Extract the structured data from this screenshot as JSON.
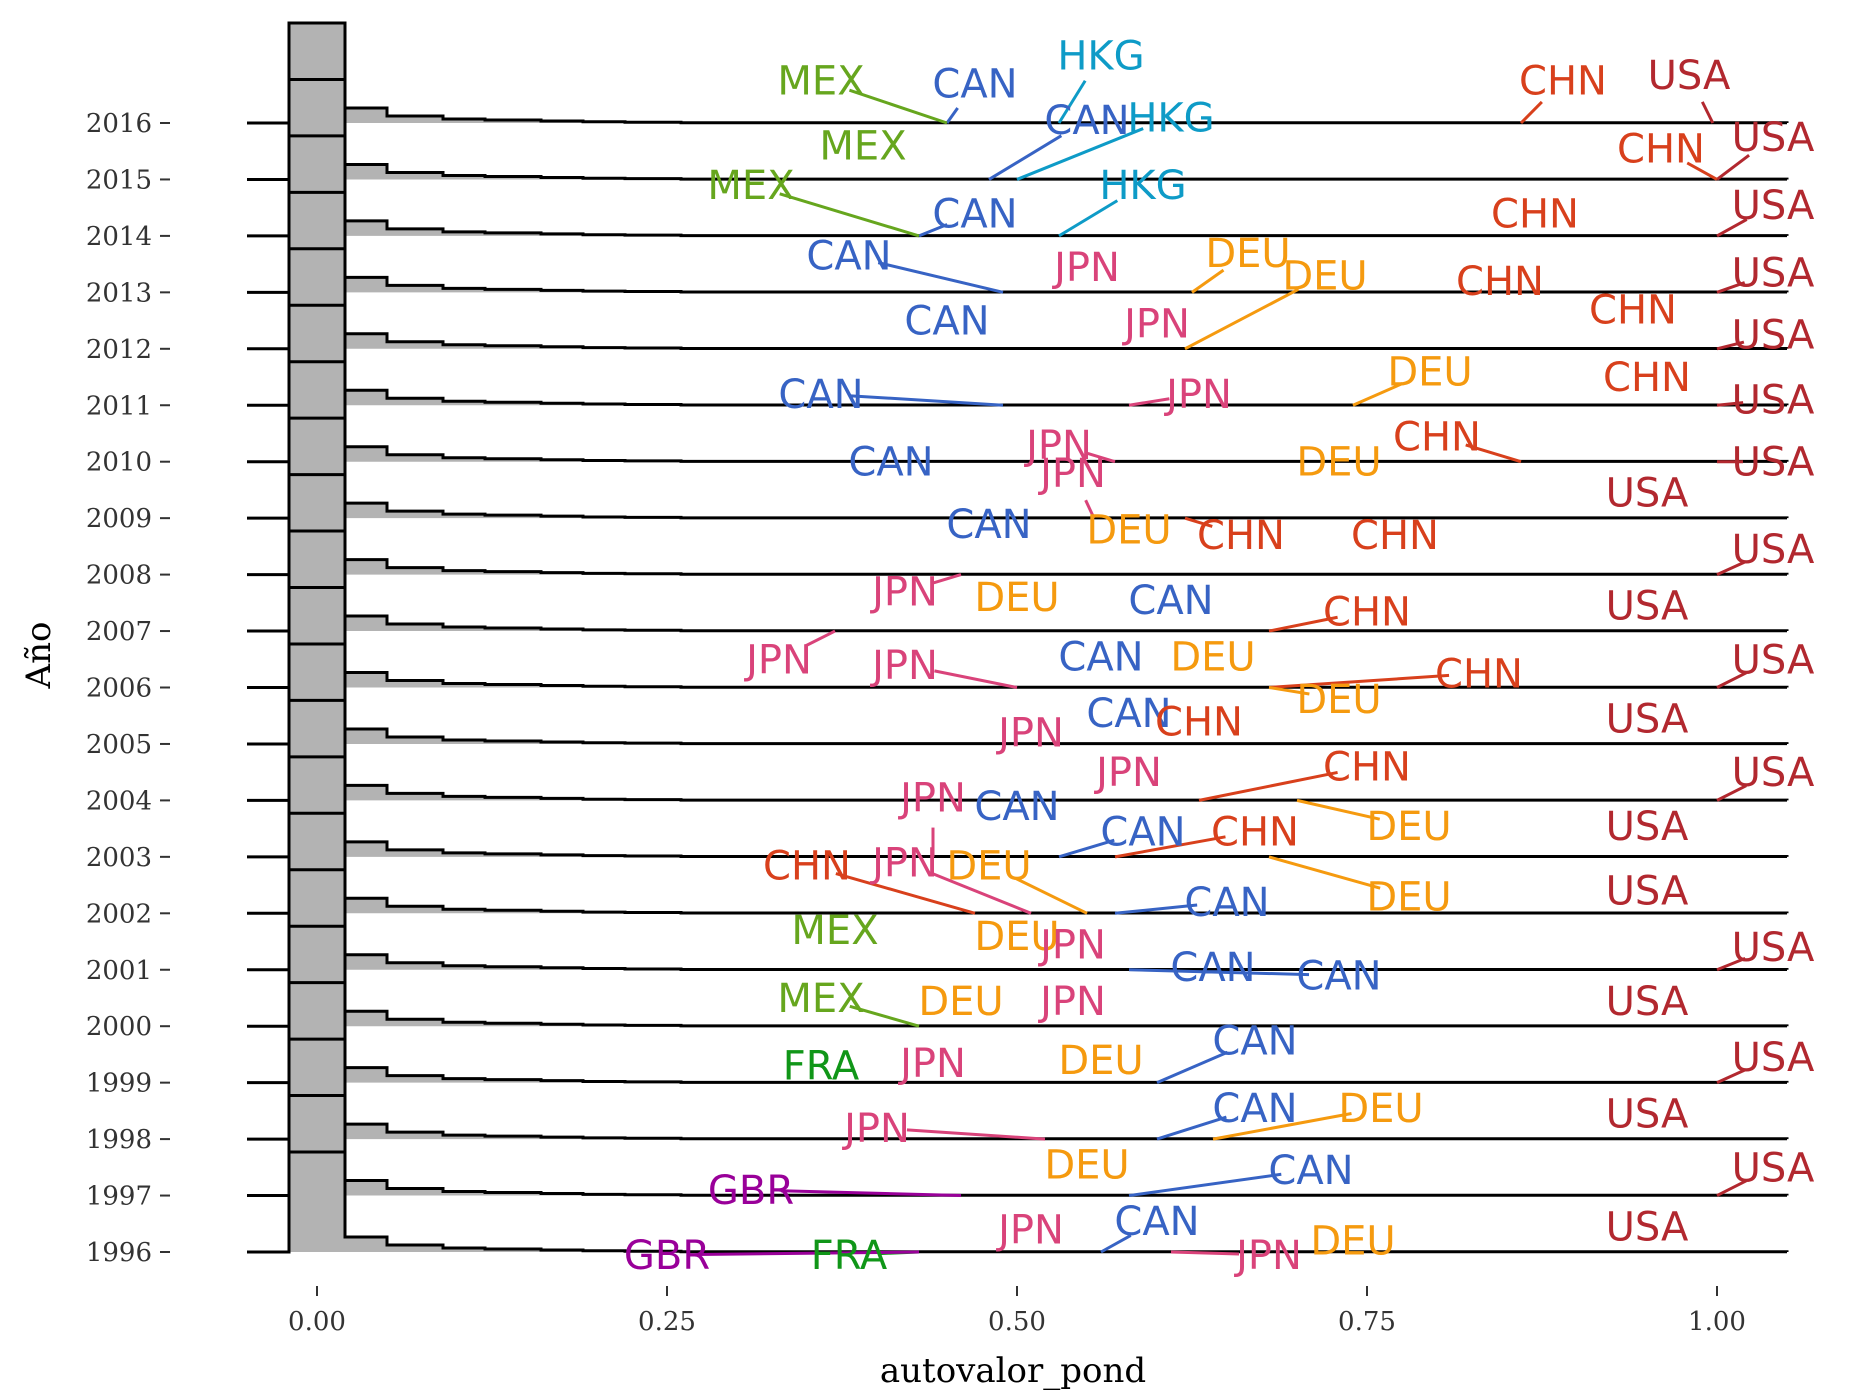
{
  "chart_data": {
    "type": "ridgeline",
    "xlabel": "autovalor_pond",
    "ylabel": "Año",
    "xlim": [
      -0.05,
      1.05
    ],
    "x_ticks": [
      0.0,
      0.25,
      0.5,
      0.75,
      1.0
    ],
    "x_tick_labels": [
      "0.00",
      "0.25",
      "0.50",
      "0.75",
      "1.00"
    ],
    "years": [
      "1996",
      "1997",
      "1998",
      "1999",
      "2000",
      "2001",
      "2002",
      "2003",
      "2004",
      "2005",
      "2006",
      "2007",
      "2008",
      "2009",
      "2010",
      "2011",
      "2012",
      "2013",
      "2014",
      "2015",
      "2016"
    ],
    "grid": false,
    "legend": "none",
    "ridge_profile": {
      "x": [
        -0.05,
        -0.02,
        0.02,
        0.05,
        0.09,
        0.12,
        0.16,
        0.19,
        0.22,
        0.26,
        1.05
      ],
      "height": [
        0,
        1.0,
        0.15,
        0.07,
        0.04,
        0.03,
        0.02,
        0.012,
        0.008,
        0.003,
        0
      ]
    },
    "country_colors": {
      "USA": "#b2282f",
      "CHN": "#d8401c",
      "DEU": "#f59a0f",
      "CAN": "#3763c4",
      "JPN": "#d9437a",
      "MEX": "#66a61e",
      "HKG": "#0e9bc7",
      "GBR": "#990099",
      "FRA": "#109618"
    },
    "labels": [
      {
        "year": "2016",
        "code": "USA",
        "x": 0.997,
        "lx": 0.98,
        "ly": 2016.85
      },
      {
        "year": "2016",
        "code": "CHN",
        "x": 0.86,
        "lx": 0.89,
        "ly": 2016.75
      },
      {
        "year": "2016",
        "code": "HKG",
        "x": 0.53,
        "lx": 0.56,
        "ly": 2017.2
      },
      {
        "year": "2016",
        "code": "CAN",
        "x": 0.45,
        "lx": 0.47,
        "ly": 2016.7
      },
      {
        "year": "2016",
        "code": "MEX",
        "x": 0.45,
        "lx": 0.36,
        "ly": 2016.75
      },
      {
        "year": "2015",
        "code": "USA",
        "x": 1.0,
        "lx": 1.04,
        "ly": 2015.75
      },
      {
        "year": "2015",
        "code": "CHN",
        "x": 1.0,
        "lx": 0.96,
        "ly": 2015.55
      },
      {
        "year": "2015",
        "code": "HKG",
        "x": 0.5,
        "lx": 0.61,
        "ly": 2016.1
      },
      {
        "year": "2015",
        "code": "CAN",
        "x": 0.48,
        "lx": 0.55,
        "ly": 2016.05
      },
      {
        "year": "2015",
        "code": "MEX",
        "x": 0.4,
        "lx": 0.39,
        "ly": 2015.6
      },
      {
        "year": "2014",
        "code": "USA",
        "x": 1.0,
        "lx": 1.04,
        "ly": 2014.55
      },
      {
        "year": "2014",
        "code": "CHN",
        "x": 0.86,
        "lx": 0.87,
        "ly": 2014.4
      },
      {
        "year": "2014",
        "code": "HKG",
        "x": 0.53,
        "lx": 0.59,
        "ly": 2014.9
      },
      {
        "year": "2014",
        "code": "CAN",
        "x": 0.43,
        "lx": 0.47,
        "ly": 2014.4
      },
      {
        "year": "2014",
        "code": "MEX",
        "x": 0.43,
        "lx": 0.31,
        "ly": 2014.9
      },
      {
        "year": "2013",
        "code": "USA",
        "x": 1.0,
        "lx": 1.04,
        "ly": 2013.35
      },
      {
        "year": "2013",
        "code": "CHN",
        "x": 0.86,
        "lx": 0.845,
        "ly": 2013.2
      },
      {
        "year": "2013",
        "code": "DEU",
        "x": 0.625,
        "lx": 0.665,
        "ly": 2013.7
      },
      {
        "year": "2013",
        "code": "JPN",
        "x": 0.55,
        "lx": 0.55,
        "ly": 2013.45
      },
      {
        "year": "2013",
        "code": "CAN",
        "x": 0.49,
        "lx": 0.38,
        "ly": 2013.65
      },
      {
        "year": "2012",
        "code": "USA",
        "x": 1.0,
        "lx": 1.04,
        "ly": 2012.25
      },
      {
        "year": "2012",
        "code": "CHN",
        "x": 0.94,
        "lx": 0.94,
        "ly": 2012.7
      },
      {
        "year": "2012",
        "code": "DEU",
        "x": 0.62,
        "lx": 0.72,
        "ly": 2013.3
      },
      {
        "year": "2012",
        "code": "JPN",
        "x": 0.62,
        "lx": 0.6,
        "ly": 2012.45
      },
      {
        "year": "2012",
        "code": "CAN",
        "x": 0.45,
        "lx": 0.45,
        "ly": 2012.5
      },
      {
        "year": "2011",
        "code": "USA",
        "x": 1.0,
        "lx": 1.04,
        "ly": 2011.1
      },
      {
        "year": "2011",
        "code": "CHN",
        "x": 0.95,
        "lx": 0.95,
        "ly": 2011.5
      },
      {
        "year": "2011",
        "code": "DEU",
        "x": 0.74,
        "lx": 0.795,
        "ly": 2011.6
      },
      {
        "year": "2011",
        "code": "JPN",
        "x": 0.58,
        "lx": 0.63,
        "ly": 2011.2
      },
      {
        "year": "2011",
        "code": "CAN",
        "x": 0.49,
        "lx": 0.36,
        "ly": 2011.2
      },
      {
        "year": "2010",
        "code": "USA",
        "x": 1.0,
        "lx": 1.04,
        "ly": 2010.0
      },
      {
        "year": "2010",
        "code": "CHN",
        "x": 0.86,
        "lx": 0.8,
        "ly": 2010.45
      },
      {
        "year": "2010",
        "code": "DEU",
        "x": 0.75,
        "lx": 0.73,
        "ly": 2010.0
      },
      {
        "year": "2010",
        "code": "JPN",
        "x": 0.57,
        "lx": 0.53,
        "ly": 2010.3
      },
      {
        "year": "2010",
        "code": "CAN",
        "x": 0.43,
        "lx": 0.41,
        "ly": 2010.0
      },
      {
        "year": "2009",
        "code": "USA",
        "x": 0.96,
        "lx": 0.95,
        "ly": 2009.45
      },
      {
        "year": "2009",
        "code": "CHN",
        "x": 0.77,
        "lx": 0.77,
        "ly": 2008.7
      },
      {
        "year": "2009",
        "code": "CHN",
        "x": 0.62,
        "lx": 0.66,
        "ly": 2008.7
      },
      {
        "year": "2009",
        "code": "DEU",
        "x": 0.58,
        "lx": 0.58,
        "ly": 2008.8
      },
      {
        "year": "2009",
        "code": "JPN",
        "x": 0.555,
        "lx": 0.54,
        "ly": 2009.8
      },
      {
        "year": "2009",
        "code": "CAN",
        "x": 0.48,
        "lx": 0.48,
        "ly": 2008.9
      },
      {
        "year": "2008",
        "code": "USA",
        "x": 1.0,
        "lx": 1.04,
        "ly": 2008.45
      },
      {
        "year": "2008",
        "code": "DEU",
        "x": 0.49,
        "lx": 0.5,
        "ly": 2007.6
      },
      {
        "year": "2008",
        "code": "CAN",
        "x": 0.62,
        "lx": 0.61,
        "ly": 2007.55
      },
      {
        "year": "2008",
        "code": "JPN",
        "x": 0.46,
        "lx": 0.42,
        "ly": 2007.7
      },
      {
        "year": "2007",
        "code": "USA",
        "x": 0.96,
        "lx": 0.95,
        "ly": 2007.45
      },
      {
        "year": "2007",
        "code": "CHN",
        "x": 0.68,
        "lx": 0.75,
        "ly": 2007.35
      },
      {
        "year": "2007",
        "code": "DEU",
        "x": 0.64,
        "lx": 0.64,
        "ly": 2006.55
      },
      {
        "year": "2007",
        "code": "CAN",
        "x": 0.56,
        "lx": 0.56,
        "ly": 2006.55
      },
      {
        "year": "2007",
        "code": "JPN",
        "x": 0.37,
        "lx": 0.33,
        "ly": 2006.5
      },
      {
        "year": "2006",
        "code": "USA",
        "x": 1.0,
        "lx": 1.04,
        "ly": 2006.5
      },
      {
        "year": "2006",
        "code": "CHN",
        "x": 0.68,
        "lx": 0.83,
        "ly": 2006.25
      },
      {
        "year": "2006",
        "code": "DEU",
        "x": 0.68,
        "lx": 0.73,
        "ly": 2005.8
      },
      {
        "year": "2006",
        "code": "CAN",
        "x": 0.59,
        "lx": 0.58,
        "ly": 2005.55
      },
      {
        "year": "2006",
        "code": "JPN",
        "x": 0.5,
        "lx": 0.42,
        "ly": 2006.4
      },
      {
        "year": "2005",
        "code": "USA",
        "x": 0.96,
        "lx": 0.95,
        "ly": 2005.45
      },
      {
        "year": "2005",
        "code": "CHN",
        "x": 0.63,
        "lx": 0.63,
        "ly": 2005.4
      },
      {
        "year": "2005",
        "code": "JPN",
        "x": 0.51,
        "lx": 0.51,
        "ly": 2005.2
      },
      {
        "year": "2004",
        "code": "USA",
        "x": 1.0,
        "lx": 1.04,
        "ly": 2004.5
      },
      {
        "year": "2004",
        "code": "CHN",
        "x": 0.63,
        "lx": 0.75,
        "ly": 2004.6
      },
      {
        "year": "2004",
        "code": "JPN",
        "x": 0.6,
        "lx": 0.58,
        "ly": 2004.5
      },
      {
        "year": "2004",
        "code": "CAN",
        "x": 0.52,
        "lx": 0.5,
        "ly": 2003.9
      },
      {
        "year": "2004",
        "code": "DEU",
        "x": 0.7,
        "lx": 0.78,
        "ly": 2003.55
      },
      {
        "year": "2003",
        "code": "USA",
        "x": 0.96,
        "lx": 0.95,
        "ly": 2003.55
      },
      {
        "year": "2003",
        "code": "CHN",
        "x": 0.57,
        "lx": 0.67,
        "ly": 2003.45
      },
      {
        "year": "2003",
        "code": "CAN",
        "x": 0.53,
        "lx": 0.59,
        "ly": 2003.45
      },
      {
        "year": "2003",
        "code": "JPN",
        "x": 0.44,
        "lx": 0.44,
        "ly": 2004.05
      },
      {
        "year": "2003",
        "code": "DEU",
        "x": 0.68,
        "lx": 0.78,
        "ly": 2002.3
      },
      {
        "year": "2002",
        "code": "USA",
        "x": 0.96,
        "lx": 0.95,
        "ly": 2002.4
      },
      {
        "year": "2002",
        "code": "DEU",
        "x": 0.55,
        "lx": 0.48,
        "ly": 2002.85
      },
      {
        "year": "2002",
        "code": "CAN",
        "x": 0.57,
        "lx": 0.65,
        "ly": 2002.2
      },
      {
        "year": "2002",
        "code": "JPN",
        "x": 0.51,
        "lx": 0.42,
        "ly": 2002.9
      },
      {
        "year": "2002",
        "code": "CHN",
        "x": 0.47,
        "lx": 0.35,
        "ly": 2002.85
      },
      {
        "year": "2002",
        "code": "MEX",
        "x": 0.37,
        "lx": 0.37,
        "ly": 2001.7
      },
      {
        "year": "2002",
        "code": "DEU",
        "x": 0.5,
        "lx": 0.5,
        "ly": 2001.6
      },
      {
        "year": "2002",
        "code": "JPN",
        "x": 0.54,
        "lx": 0.54,
        "ly": 2001.45
      },
      {
        "year": "2001",
        "code": "USA",
        "x": 1.0,
        "lx": 1.04,
        "ly": 2001.4
      },
      {
        "year": "2001",
        "code": "CAN",
        "x": 0.65,
        "lx": 0.64,
        "ly": 2001.05
      },
      {
        "year": "2001",
        "code": "CAN",
        "x": 0.58,
        "lx": 0.73,
        "ly": 2000.9
      },
      {
        "year": "2000",
        "code": "USA",
        "x": 0.96,
        "lx": 0.95,
        "ly": 2000.45
      },
      {
        "year": "2000",
        "code": "MEX",
        "x": 0.43,
        "lx": 0.36,
        "ly": 2000.5
      },
      {
        "year": "2000",
        "code": "DEU",
        "x": 0.46,
        "lx": 0.46,
        "ly": 2000.45
      },
      {
        "year": "2000",
        "code": "JPN",
        "x": 0.54,
        "lx": 0.54,
        "ly": 2000.45
      },
      {
        "year": "1999",
        "code": "USA",
        "x": 1.0,
        "lx": 1.04,
        "ly": 1999.45
      },
      {
        "year": "1999",
        "code": "CAN",
        "x": 0.6,
        "lx": 0.67,
        "ly": 1999.75
      },
      {
        "year": "1999",
        "code": "DEU",
        "x": 0.56,
        "lx": 0.56,
        "ly": 1999.4
      },
      {
        "year": "1999",
        "code": "JPN",
        "x": 0.44,
        "lx": 0.44,
        "ly": 1999.35
      },
      {
        "year": "1999",
        "code": "FRA",
        "x": 0.36,
        "lx": 0.36,
        "ly": 1999.3
      },
      {
        "year": "1998",
        "code": "USA",
        "x": 0.96,
        "lx": 0.95,
        "ly": 1998.45
      },
      {
        "year": "1998",
        "code": "CAN",
        "x": 0.6,
        "lx": 0.67,
        "ly": 1998.55
      },
      {
        "year": "1998",
        "code": "DEU",
        "x": 0.64,
        "lx": 0.76,
        "ly": 1998.55
      },
      {
        "year": "1998",
        "code": "JPN",
        "x": 0.52,
        "lx": 0.4,
        "ly": 1998.2
      },
      {
        "year": "1998",
        "code": "DEU",
        "x": 0.55,
        "lx": 0.55,
        "ly": 1997.55
      },
      {
        "year": "1997",
        "code": "USA",
        "x": 1.0,
        "lx": 1.04,
        "ly": 1997.5
      },
      {
        "year": "1997",
        "code": "CAN",
        "x": 0.58,
        "lx": 0.71,
        "ly": 1997.45
      },
      {
        "year": "1997",
        "code": "JPN",
        "x": 0.51,
        "lx": 0.51,
        "ly": 1996.4
      },
      {
        "year": "1997",
        "code": "GBR",
        "x": 0.46,
        "lx": 0.31,
        "ly": 1997.1
      },
      {
        "year": "1996",
        "code": "USA",
        "x": 0.96,
        "lx": 0.95,
        "ly": 1996.45
      },
      {
        "year": "1996",
        "code": "CAN",
        "x": 0.56,
        "lx": 0.6,
        "ly": 1996.55
      },
      {
        "year": "1996",
        "code": "DEU",
        "x": 0.74,
        "lx": 0.74,
        "ly": 1996.2
      },
      {
        "year": "1996",
        "code": "JPN",
        "x": 0.61,
        "lx": 0.68,
        "ly": 1995.95
      },
      {
        "year": "1996",
        "code": "FRA",
        "x": 0.43,
        "lx": 0.38,
        "ly": 1995.95
      },
      {
        "year": "1996",
        "code": "GBR",
        "x": 0.43,
        "lx": 0.25,
        "ly": 1995.95
      }
    ]
  }
}
